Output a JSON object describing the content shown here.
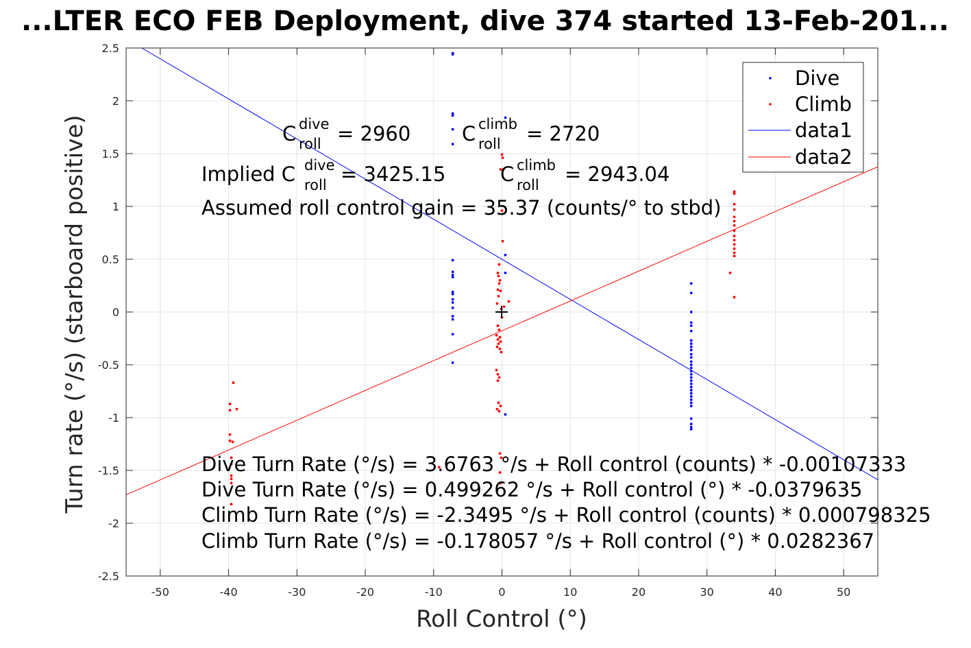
{
  "chart_data": {
    "type": "scatter",
    "title": "...LTER ECO FEB Deployment, dive 374 started 13-Feb-201...",
    "xlabel": "Roll Control (°)",
    "ylabel": "Turn rate (°/s) (starboard positive)",
    "xlim": [
      -55,
      55
    ],
    "ylim": [
      -2.5,
      2.5
    ],
    "xticks": [
      -50,
      -40,
      -30,
      -20,
      -10,
      0,
      10,
      20,
      30,
      40,
      50
    ],
    "yticks": [
      -2.5,
      -2,
      -1.5,
      -1,
      -0.5,
      0,
      0.5,
      1,
      1.5,
      2,
      2.5
    ],
    "xtick_labels": [
      "-50",
      "-40",
      "-30",
      "-20",
      "-10",
      "0",
      "10",
      "20",
      "30",
      "40",
      "50"
    ],
    "ytick_labels": [
      "-2.5",
      "-2",
      "-1.5",
      "-1",
      "-0.5",
      "0",
      "0.5",
      "1",
      "1.5",
      "2",
      "2.5"
    ],
    "grid": true,
    "legend_position": "top-right",
    "series": [
      {
        "name": "Dive",
        "kind": "points",
        "color": "#0000ff",
        "points": [
          [
            -7.2,
            2.45
          ],
          [
            -7.2,
            2.44
          ],
          [
            -7.2,
            1.88
          ],
          [
            -7.2,
            1.86
          ],
          [
            -7.2,
            1.73
          ],
          [
            -7.2,
            1.59
          ],
          [
            -7.2,
            0.49
          ],
          [
            -7.2,
            0.38
          ],
          [
            -7.2,
            0.35
          ],
          [
            -7.2,
            0.33
          ],
          [
            -7.2,
            0.19
          ],
          [
            -7.2,
            0.17
          ],
          [
            -7.2,
            0.12
          ],
          [
            -7.2,
            0.09
          ],
          [
            -7.2,
            0.04
          ],
          [
            -7.2,
            -0.04
          ],
          [
            -7.2,
            -0.07
          ],
          [
            -7.2,
            -0.21
          ],
          [
            -7.2,
            -0.48
          ],
          [
            0.5,
            1.84
          ],
          [
            0.5,
            0.54
          ],
          [
            0.5,
            0.37
          ],
          [
            0.5,
            -0.97
          ],
          [
            27.7,
            0.27
          ],
          [
            27.7,
            0.18
          ],
          [
            27.7,
            0.0
          ],
          [
            27.7,
            -0.1
          ],
          [
            27.7,
            -0.13
          ],
          [
            27.7,
            -0.18
          ],
          [
            27.7,
            -0.27
          ],
          [
            27.7,
            -0.3
          ],
          [
            27.7,
            -0.33
          ],
          [
            27.7,
            -0.36
          ],
          [
            27.7,
            -0.4
          ],
          [
            27.7,
            -0.43
          ],
          [
            27.7,
            -0.47
          ],
          [
            27.7,
            -0.5
          ],
          [
            27.7,
            -0.53
          ],
          [
            27.7,
            -0.56
          ],
          [
            27.7,
            -0.59
          ],
          [
            27.7,
            -0.62
          ],
          [
            27.7,
            -0.65
          ],
          [
            27.7,
            -0.68
          ],
          [
            27.7,
            -0.71
          ],
          [
            27.7,
            -0.74
          ],
          [
            27.7,
            -0.77
          ],
          [
            27.7,
            -0.8
          ],
          [
            27.7,
            -0.83
          ],
          [
            27.7,
            -0.86
          ],
          [
            27.7,
            -0.89
          ],
          [
            27.7,
            -1.01
          ],
          [
            27.7,
            -1.06
          ],
          [
            27.7,
            -1.09
          ],
          [
            27.7,
            -1.11
          ]
        ]
      },
      {
        "name": "Climb",
        "kind": "points",
        "color": "#ff0000",
        "points": [
          [
            -39.8,
            -0.87
          ],
          [
            -39.8,
            -0.93
          ],
          [
            -39.3,
            -0.67
          ],
          [
            -38.8,
            -0.92
          ],
          [
            -39.8,
            -1.16
          ],
          [
            -39.8,
            -1.22
          ],
          [
            -39.4,
            -1.23
          ],
          [
            -39.6,
            -1.38
          ],
          [
            -39.6,
            -1.44
          ],
          [
            -39.6,
            -1.55
          ],
          [
            -39.6,
            -1.58
          ],
          [
            -39.6,
            -1.62
          ],
          [
            -39.6,
            -1.82
          ],
          [
            -9.2,
            -1.47
          ],
          [
            0.0,
            1.49
          ],
          [
            0.1,
            1.46
          ],
          [
            -0.2,
            1.35
          ],
          [
            0.2,
            1.35
          ],
          [
            0.0,
            0.96
          ],
          [
            0.1,
            0.67
          ],
          [
            -0.4,
            0.45
          ],
          [
            -0.6,
            0.37
          ],
          [
            -0.5,
            0.34
          ],
          [
            -0.3,
            0.3
          ],
          [
            -0.4,
            0.27
          ],
          [
            -0.6,
            0.21
          ],
          [
            -0.2,
            0.2
          ],
          [
            -0.5,
            0.15
          ],
          [
            1.0,
            0.1
          ],
          [
            -0.7,
            0.08
          ],
          [
            0.3,
            0.05
          ],
          [
            -0.1,
            0.03
          ],
          [
            0.0,
            -0.05
          ],
          [
            -0.6,
            -0.13
          ],
          [
            -0.4,
            -0.17
          ],
          [
            -0.8,
            -0.22
          ],
          [
            -0.3,
            -0.24
          ],
          [
            -0.6,
            -0.26
          ],
          [
            -0.2,
            -0.28
          ],
          [
            -0.5,
            -0.3
          ],
          [
            -0.7,
            -0.33
          ],
          [
            -0.3,
            -0.35
          ],
          [
            -0.1,
            -0.38
          ],
          [
            -0.8,
            -0.55
          ],
          [
            -0.6,
            -0.59
          ],
          [
            -0.4,
            -0.62
          ],
          [
            -0.6,
            -0.65
          ],
          [
            -0.5,
            -0.86
          ],
          [
            -0.2,
            -0.89
          ],
          [
            -0.7,
            -0.92
          ],
          [
            -0.4,
            -0.94
          ],
          [
            -0.3,
            -1.34
          ],
          [
            -0.1,
            -1.38
          ],
          [
            -0.3,
            -1.52
          ],
          [
            -0.2,
            -1.62
          ],
          [
            33.4,
            0.37
          ],
          [
            34.0,
            1.14
          ],
          [
            34.0,
            1.12
          ],
          [
            34.0,
            1.02
          ],
          [
            34.0,
            0.97
          ],
          [
            34.0,
            0.9
          ],
          [
            34.0,
            0.86
          ],
          [
            34.0,
            0.82
          ],
          [
            34.0,
            0.77
          ],
          [
            34.0,
            0.72
          ],
          [
            34.0,
            0.68
          ],
          [
            34.0,
            0.64
          ],
          [
            34.0,
            0.6
          ],
          [
            34.0,
            0.56
          ],
          [
            34.0,
            0.53
          ],
          [
            34.0,
            0.14
          ]
        ]
      },
      {
        "name": "data1",
        "kind": "line",
        "color": "#0000ff",
        "intercept": 0.499262,
        "slope": -0.0379635
      },
      {
        "name": "data2",
        "kind": "line",
        "color": "#ff0000",
        "intercept": -0.178057,
        "slope": 0.0282367
      }
    ],
    "origin_marker": [
      0,
      0
    ],
    "annotations": {
      "c_dive_prefix": "C",
      "c_dive_sup": "dive",
      "c_dive_sub": "roll",
      "c_dive_value": " = 2960",
      "c_climb_prefix": "C",
      "c_climb_sup": "climb",
      "c_climb_sub": "roll",
      "c_climb_value": " = 2720",
      "implied_prefix": "Implied C",
      "implied_dive_sup": "dive",
      "implied_dive_sub": "roll",
      "implied_dive_value": " = 3425.15",
      "implied_climb_prefix": "C",
      "implied_climb_sup": "climb",
      "implied_climb_sub": "roll",
      "implied_climb_value": " = 2943.04",
      "gain": "Assumed roll control gain = 35.37 (counts/° to stbd)",
      "eq1": "Dive Turn Rate (°/s) = 3.6763 °/s + Roll control (counts) * -0.00107333",
      "eq2": "Dive Turn Rate (°/s) = 0.499262 °/s + Roll control (°) * -0.0379635",
      "eq3": "Climb Turn Rate (°/s) = -2.3495 °/s + Roll control (counts) * 0.000798325",
      "eq4": "Climb Turn Rate (°/s) = -0.178057 °/s + Roll control (°) * 0.0282367"
    }
  }
}
